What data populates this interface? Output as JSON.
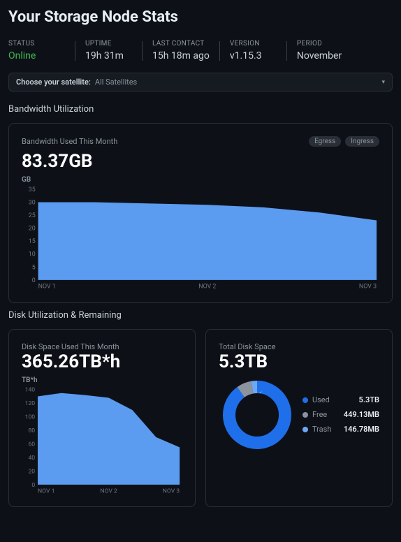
{
  "page_title": "Your Storage Node Stats",
  "stats": {
    "status_label": "STATUS",
    "status_value": "Online",
    "status_color": "#3fb950",
    "uptime_label": "UPTIME",
    "uptime_value": "19h 31m",
    "last_contact_label": "LAST CONTACT",
    "last_contact_value": "15h 18m ago",
    "version_label": "VERSION",
    "version_value": "v1.15.3",
    "period_label": "PERIOD",
    "period_value": "November"
  },
  "satellite": {
    "label": "Choose your satellite:",
    "value": "All Satellites"
  },
  "bandwidth": {
    "section_title": "Bandwidth Utilization",
    "card_subtitle": "Bandwidth Used This Month",
    "pill_egress": "Egress",
    "pill_ingress": "Ingress",
    "total": "83.37GB",
    "unit": "GB",
    "chart": {
      "type": "area",
      "y_ticks": [
        0,
        5,
        10,
        15,
        20,
        25,
        30,
        35
      ],
      "ylim": [
        0,
        35
      ],
      "x_labels": [
        "NOV 1",
        "NOV 2",
        "NOV 3"
      ],
      "values": [
        30,
        30,
        29.5,
        29,
        28,
        26,
        23
      ],
      "fill_color": "#5b9bf0",
      "tick_color": "#6e7681",
      "tick_fontsize": 9
    }
  },
  "disk": {
    "section_title": "Disk Utilization & Remaining",
    "used_card": {
      "subtitle": "Disk Space Used This Month",
      "total": "365.26TB*h",
      "unit": "TB*h",
      "chart": {
        "type": "area",
        "y_ticks": [
          0,
          20,
          40,
          60,
          80,
          100,
          120,
          140
        ],
        "ylim": [
          0,
          140
        ],
        "x_labels": [
          "NOV 1",
          "NOV 2",
          "NOV 3"
        ],
        "values": [
          130,
          135,
          132,
          128,
          110,
          70,
          55
        ],
        "fill_color": "#5b9bf0",
        "tick_color": "#6e7681",
        "tick_fontsize": 9
      }
    },
    "total_card": {
      "subtitle": "Total Disk Space",
      "total": "5.3TB",
      "donut": {
        "type": "donut",
        "segments": [
          {
            "label": "Used",
            "value": "5.3TB",
            "fraction": 0.9,
            "color": "#1f6feb"
          },
          {
            "label": "Free",
            "value": "449.13MB",
            "fraction": 0.07,
            "color": "#8b949e"
          },
          {
            "label": "Trash",
            "value": "146.78MB",
            "fraction": 0.03,
            "color": "#6ea8f5"
          }
        ],
        "inner_color": "#0d1117",
        "stroke_width": 18
      }
    }
  }
}
